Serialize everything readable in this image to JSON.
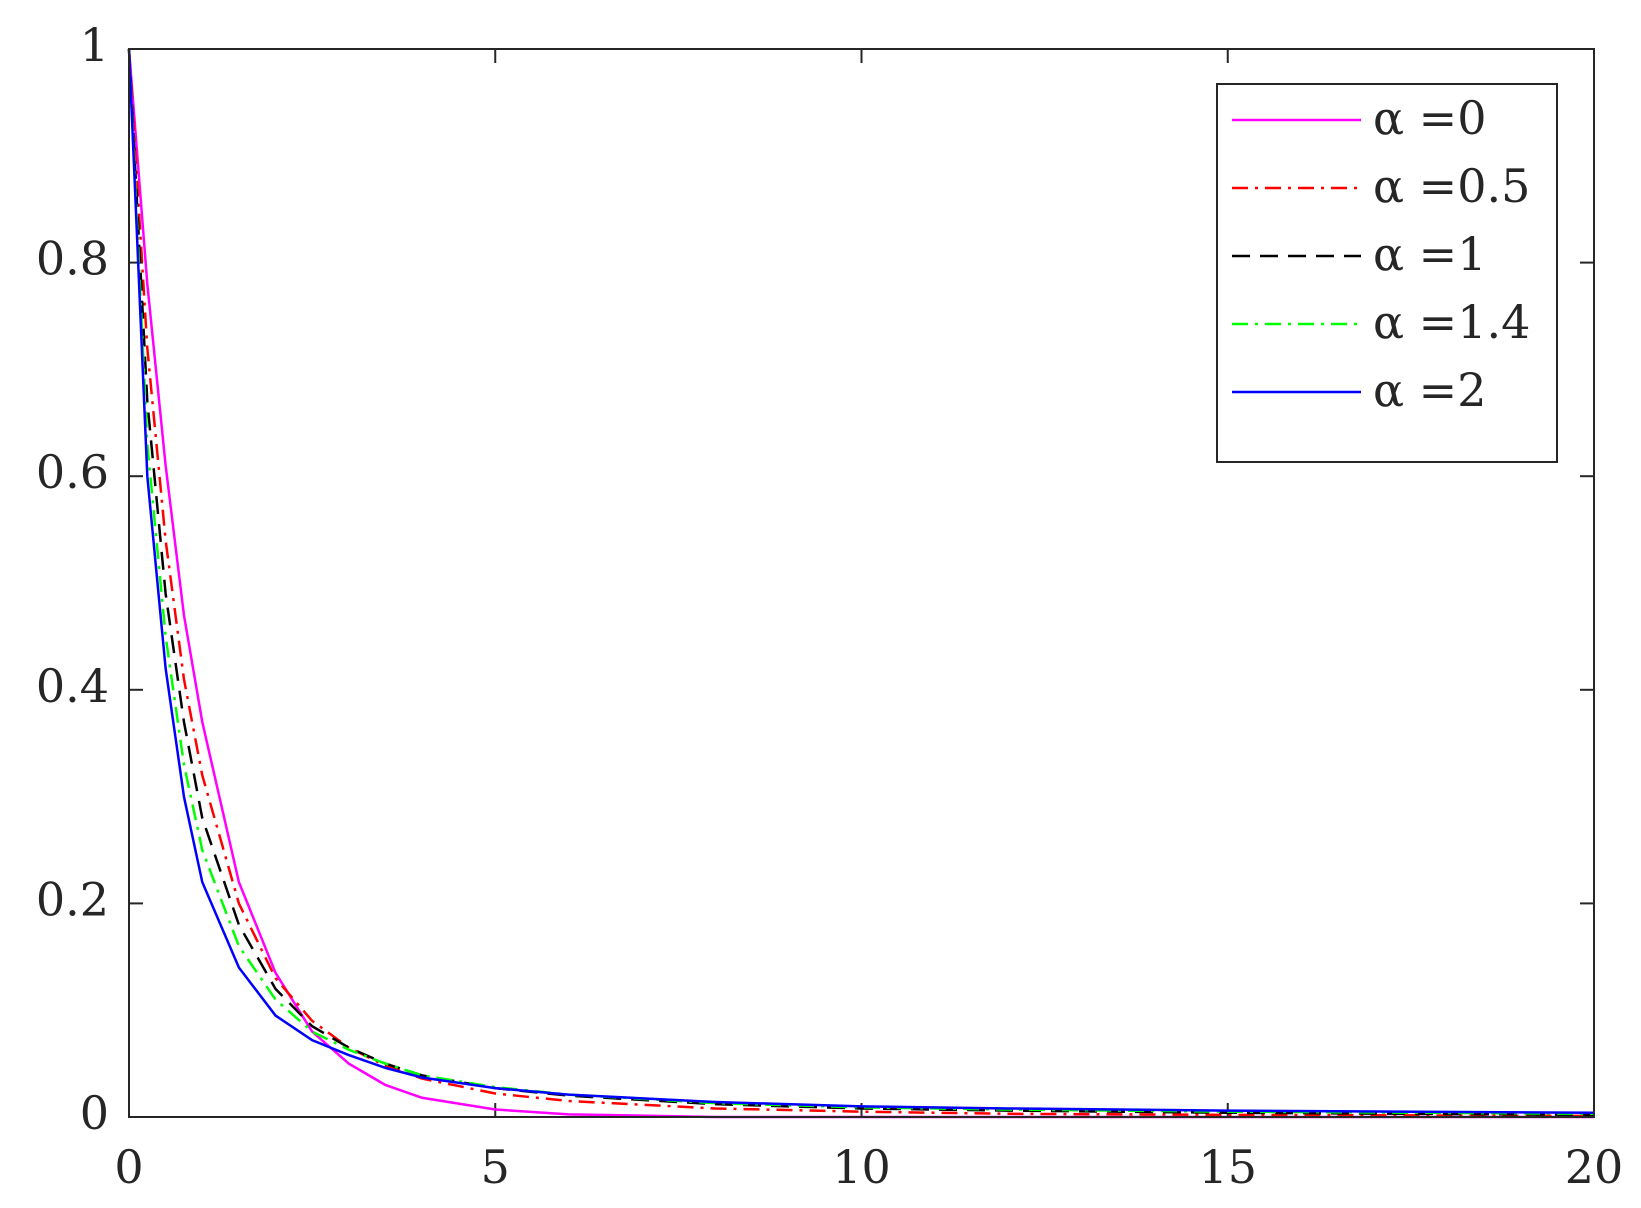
{
  "chart_data": {
    "type": "line",
    "x": [
      0,
      0.25,
      0.5,
      0.75,
      1,
      1.5,
      2,
      2.5,
      3,
      3.5,
      4,
      5,
      6,
      8,
      10,
      12,
      15,
      20
    ],
    "series": [
      {
        "name": "α =0",
        "color": "#ff00ff",
        "dash": "solid",
        "values": [
          1,
          0.78,
          0.61,
          0.47,
          0.37,
          0.22,
          0.135,
          0.08,
          0.05,
          0.03,
          0.018,
          0.007,
          0.0025,
          0,
          0,
          0,
          0,
          0
        ]
      },
      {
        "name": "α =0.5",
        "color": "#ff0000",
        "dash": "dashdot",
        "values": [
          1,
          0.72,
          0.54,
          0.41,
          0.32,
          0.2,
          0.13,
          0.09,
          0.065,
          0.048,
          0.036,
          0.022,
          0.015,
          0.008,
          0.005,
          0.003,
          0.002,
          0.001
        ]
      },
      {
        "name": "α =1",
        "color": "#000000",
        "dash": "dashed",
        "values": [
          1,
          0.67,
          0.49,
          0.37,
          0.28,
          0.18,
          0.12,
          0.085,
          0.065,
          0.05,
          0.039,
          0.027,
          0.02,
          0.012,
          0.008,
          0.006,
          0.004,
          0.002
        ]
      },
      {
        "name": "α =1.4",
        "color": "#00ff00",
        "dash": "dashdot",
        "values": [
          1,
          0.63,
          0.45,
          0.33,
          0.25,
          0.16,
          0.11,
          0.08,
          0.063,
          0.05,
          0.039,
          0.028,
          0.021,
          0.013,
          0.009,
          0.007,
          0.005,
          0.003
        ]
      },
      {
        "name": "α =2",
        "color": "#0000ff",
        "dash": "solid",
        "values": [
          1,
          0.6,
          0.42,
          0.3,
          0.22,
          0.14,
          0.095,
          0.072,
          0.058,
          0.046,
          0.037,
          0.027,
          0.021,
          0.014,
          0.01,
          0.008,
          0.006,
          0.004
        ]
      }
    ],
    "xlim": [
      0,
      20
    ],
    "xticks": [
      0,
      5,
      10,
      15,
      20
    ],
    "ylim": [
      0,
      1
    ],
    "yticks": [
      0,
      0.2,
      0.4,
      0.6,
      0.8,
      1
    ],
    "grid": false,
    "legend": "upper right"
  }
}
